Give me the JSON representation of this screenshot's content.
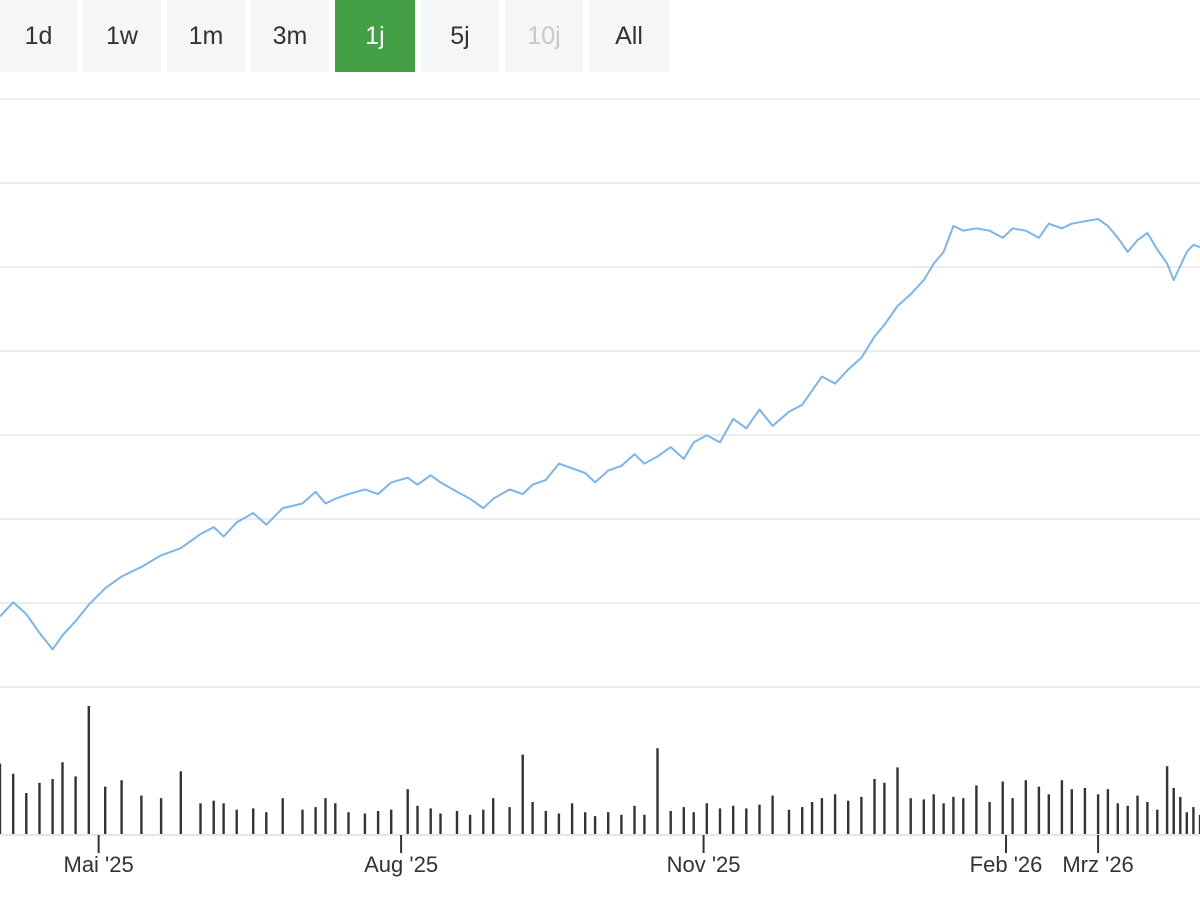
{
  "range_selector": {
    "buttons": [
      {
        "label": "1d",
        "state": "normal"
      },
      {
        "label": "1w",
        "state": "normal"
      },
      {
        "label": "1m",
        "state": "normal"
      },
      {
        "label": "3m",
        "state": "normal"
      },
      {
        "label": "1j",
        "state": "active"
      },
      {
        "label": "5j",
        "state": "normal"
      },
      {
        "label": "10j",
        "state": "disabled"
      },
      {
        "label": "All",
        "state": "normal"
      }
    ],
    "active_color": "#43a047"
  },
  "colors": {
    "line": "#7cb5ec",
    "volume": "#333333",
    "grid": "#e6e6e6",
    "axis": "#cccccc"
  },
  "chart_data": {
    "type": "line",
    "period_start": "2025-04-01",
    "period_end": "2026-04-01",
    "price_grid_lines": 7,
    "x_ticks": [
      {
        "label": "Mai '25",
        "date": "2025-05-01"
      },
      {
        "label": "Aug '25",
        "date": "2025-08-01"
      },
      {
        "label": "Nov '25",
        "date": "2025-11-01"
      },
      {
        "label": "Feb '26",
        "date": "2026-02-01"
      },
      {
        "label": "Mrz '26",
        "date": "2026-03-01"
      }
    ],
    "series": [
      {
        "type": "line",
        "points": [
          [
            "2025-04-01",
            0.1
          ],
          [
            "2025-04-05",
            0.16
          ],
          [
            "2025-04-09",
            0.11
          ],
          [
            "2025-04-13",
            0.03
          ],
          [
            "2025-04-17",
            -0.04
          ],
          [
            "2025-04-20",
            0.02
          ],
          [
            "2025-04-24",
            0.08
          ],
          [
            "2025-04-28",
            0.15
          ],
          [
            "2025-05-03",
            0.22
          ],
          [
            "2025-05-08",
            0.27
          ],
          [
            "2025-05-14",
            0.31
          ],
          [
            "2025-05-20",
            0.36
          ],
          [
            "2025-05-26",
            0.39
          ],
          [
            "2025-06-01",
            0.45
          ],
          [
            "2025-06-05",
            0.48
          ],
          [
            "2025-06-08",
            0.44
          ],
          [
            "2025-06-12",
            0.5
          ],
          [
            "2025-06-17",
            0.54
          ],
          [
            "2025-06-21",
            0.49
          ],
          [
            "2025-06-26",
            0.56
          ],
          [
            "2025-07-02",
            0.58
          ],
          [
            "2025-07-06",
            0.63
          ],
          [
            "2025-07-09",
            0.58
          ],
          [
            "2025-07-12",
            0.6
          ],
          [
            "2025-07-16",
            0.62
          ],
          [
            "2025-07-21",
            0.64
          ],
          [
            "2025-07-25",
            0.62
          ],
          [
            "2025-07-29",
            0.67
          ],
          [
            "2025-08-03",
            0.69
          ],
          [
            "2025-08-06",
            0.66
          ],
          [
            "2025-08-10",
            0.7
          ],
          [
            "2025-08-13",
            0.67
          ],
          [
            "2025-08-18",
            0.63
          ],
          [
            "2025-08-22",
            0.6
          ],
          [
            "2025-08-26",
            0.56
          ],
          [
            "2025-08-29",
            0.6
          ],
          [
            "2025-09-03",
            0.64
          ],
          [
            "2025-09-07",
            0.62
          ],
          [
            "2025-09-10",
            0.66
          ],
          [
            "2025-09-14",
            0.68
          ],
          [
            "2025-09-18",
            0.75
          ],
          [
            "2025-09-22",
            0.73
          ],
          [
            "2025-09-26",
            0.71
          ],
          [
            "2025-09-29",
            0.67
          ],
          [
            "2025-10-03",
            0.72
          ],
          [
            "2025-10-07",
            0.74
          ],
          [
            "2025-10-11",
            0.79
          ],
          [
            "2025-10-14",
            0.75
          ],
          [
            "2025-10-18",
            0.78
          ],
          [
            "2025-10-22",
            0.82
          ],
          [
            "2025-10-26",
            0.77
          ],
          [
            "2025-10-29",
            0.84
          ],
          [
            "2025-11-02",
            0.87
          ],
          [
            "2025-11-06",
            0.84
          ],
          [
            "2025-11-10",
            0.94
          ],
          [
            "2025-11-14",
            0.9
          ],
          [
            "2025-11-18",
            0.98
          ],
          [
            "2025-11-22",
            0.91
          ],
          [
            "2025-11-27",
            0.97
          ],
          [
            "2025-12-01",
            1.0
          ],
          [
            "2025-12-04",
            1.06
          ],
          [
            "2025-12-07",
            1.12
          ],
          [
            "2025-12-11",
            1.09
          ],
          [
            "2025-12-15",
            1.15
          ],
          [
            "2025-12-19",
            1.2
          ],
          [
            "2025-12-23",
            1.29
          ],
          [
            "2025-12-26",
            1.34
          ],
          [
            "2025-12-30",
            1.42
          ],
          [
            "2026-01-03",
            1.47
          ],
          [
            "2026-01-07",
            1.53
          ],
          [
            "2026-01-10",
            1.6
          ],
          [
            "2026-01-13",
            1.65
          ],
          [
            "2026-01-16",
            1.76
          ],
          [
            "2026-01-19",
            1.74
          ],
          [
            "2026-01-23",
            1.75
          ],
          [
            "2026-01-27",
            1.74
          ],
          [
            "2026-01-31",
            1.71
          ],
          [
            "2026-02-03",
            1.75
          ],
          [
            "2026-02-07",
            1.74
          ],
          [
            "2026-02-11",
            1.71
          ],
          [
            "2026-02-14",
            1.77
          ],
          [
            "2026-02-18",
            1.75
          ],
          [
            "2026-02-21",
            1.77
          ],
          [
            "2026-02-25",
            1.78
          ],
          [
            "2026-03-01",
            1.79
          ],
          [
            "2026-03-04",
            1.76
          ],
          [
            "2026-03-07",
            1.71
          ],
          [
            "2026-03-10",
            1.65
          ],
          [
            "2026-03-13",
            1.7
          ],
          [
            "2026-03-16",
            1.73
          ],
          [
            "2026-03-19",
            1.66
          ],
          [
            "2026-03-22",
            1.6
          ],
          [
            "2026-03-24",
            1.53
          ],
          [
            "2026-03-26",
            1.59
          ],
          [
            "2026-03-28",
            1.65
          ],
          [
            "2026-03-30",
            1.68
          ],
          [
            "2026-04-01",
            1.67
          ]
        ]
      },
      {
        "type": "column",
        "points": [
          [
            "2025-04-01",
            0.55
          ],
          [
            "2025-04-05",
            0.47
          ],
          [
            "2025-04-09",
            0.32
          ],
          [
            "2025-04-13",
            0.4
          ],
          [
            "2025-04-17",
            0.43
          ],
          [
            "2025-04-20",
            0.56
          ],
          [
            "2025-04-24",
            0.45
          ],
          [
            "2025-04-28",
            1.0
          ],
          [
            "2025-05-03",
            0.37
          ],
          [
            "2025-05-08",
            0.42
          ],
          [
            "2025-05-14",
            0.3
          ],
          [
            "2025-05-20",
            0.28
          ],
          [
            "2025-05-26",
            0.49
          ],
          [
            "2025-06-01",
            0.24
          ],
          [
            "2025-06-05",
            0.26
          ],
          [
            "2025-06-08",
            0.24
          ],
          [
            "2025-06-12",
            0.19
          ],
          [
            "2025-06-17",
            0.2
          ],
          [
            "2025-06-21",
            0.17
          ],
          [
            "2025-06-26",
            0.28
          ],
          [
            "2025-07-02",
            0.19
          ],
          [
            "2025-07-06",
            0.21
          ],
          [
            "2025-07-09",
            0.28
          ],
          [
            "2025-07-12",
            0.24
          ],
          [
            "2025-07-16",
            0.17
          ],
          [
            "2025-07-21",
            0.16
          ],
          [
            "2025-07-25",
            0.18
          ],
          [
            "2025-07-29",
            0.19
          ],
          [
            "2025-08-03",
            0.35
          ],
          [
            "2025-08-06",
            0.22
          ],
          [
            "2025-08-10",
            0.2
          ],
          [
            "2025-08-13",
            0.16
          ],
          [
            "2025-08-18",
            0.18
          ],
          [
            "2025-08-22",
            0.15
          ],
          [
            "2025-08-26",
            0.19
          ],
          [
            "2025-08-29",
            0.28
          ],
          [
            "2025-09-03",
            0.21
          ],
          [
            "2025-09-07",
            0.62
          ],
          [
            "2025-09-10",
            0.25
          ],
          [
            "2025-09-14",
            0.18
          ],
          [
            "2025-09-18",
            0.16
          ],
          [
            "2025-09-22",
            0.24
          ],
          [
            "2025-09-26",
            0.17
          ],
          [
            "2025-09-29",
            0.14
          ],
          [
            "2025-10-03",
            0.17
          ],
          [
            "2025-10-07",
            0.15
          ],
          [
            "2025-10-11",
            0.22
          ],
          [
            "2025-10-14",
            0.15
          ],
          [
            "2025-10-18",
            0.67
          ],
          [
            "2025-10-22",
            0.18
          ],
          [
            "2025-10-26",
            0.21
          ],
          [
            "2025-10-29",
            0.17
          ],
          [
            "2025-11-02",
            0.24
          ],
          [
            "2025-11-06",
            0.2
          ],
          [
            "2025-11-10",
            0.22
          ],
          [
            "2025-11-14",
            0.2
          ],
          [
            "2025-11-18",
            0.23
          ],
          [
            "2025-11-22",
            0.3
          ],
          [
            "2025-11-27",
            0.19
          ],
          [
            "2025-12-01",
            0.21
          ],
          [
            "2025-12-04",
            0.25
          ],
          [
            "2025-12-07",
            0.28
          ],
          [
            "2025-12-11",
            0.31
          ],
          [
            "2025-12-15",
            0.26
          ],
          [
            "2025-12-19",
            0.29
          ],
          [
            "2025-12-23",
            0.43
          ],
          [
            "2025-12-26",
            0.4
          ],
          [
            "2025-12-30",
            0.52
          ],
          [
            "2026-01-03",
            0.28
          ],
          [
            "2026-01-07",
            0.27
          ],
          [
            "2026-01-10",
            0.31
          ],
          [
            "2026-01-13",
            0.24
          ],
          [
            "2026-01-16",
            0.29
          ],
          [
            "2026-01-19",
            0.28
          ],
          [
            "2026-01-23",
            0.38
          ],
          [
            "2026-01-27",
            0.25
          ],
          [
            "2026-01-31",
            0.41
          ],
          [
            "2026-02-03",
            0.28
          ],
          [
            "2026-02-07",
            0.42
          ],
          [
            "2026-02-11",
            0.37
          ],
          [
            "2026-02-14",
            0.31
          ],
          [
            "2026-02-18",
            0.42
          ],
          [
            "2026-02-21",
            0.35
          ],
          [
            "2026-02-25",
            0.36
          ],
          [
            "2026-03-01",
            0.31
          ],
          [
            "2026-03-04",
            0.35
          ],
          [
            "2026-03-07",
            0.24
          ],
          [
            "2026-03-10",
            0.22
          ],
          [
            "2026-03-13",
            0.3
          ],
          [
            "2026-03-16",
            0.25
          ],
          [
            "2026-03-19",
            0.19
          ],
          [
            "2026-03-22",
            0.53
          ],
          [
            "2026-03-24",
            0.36
          ],
          [
            "2026-03-26",
            0.29
          ],
          [
            "2026-03-28",
            0.17
          ],
          [
            "2026-03-30",
            0.21
          ],
          [
            "2026-04-01",
            0.15
          ]
        ]
      }
    ]
  }
}
